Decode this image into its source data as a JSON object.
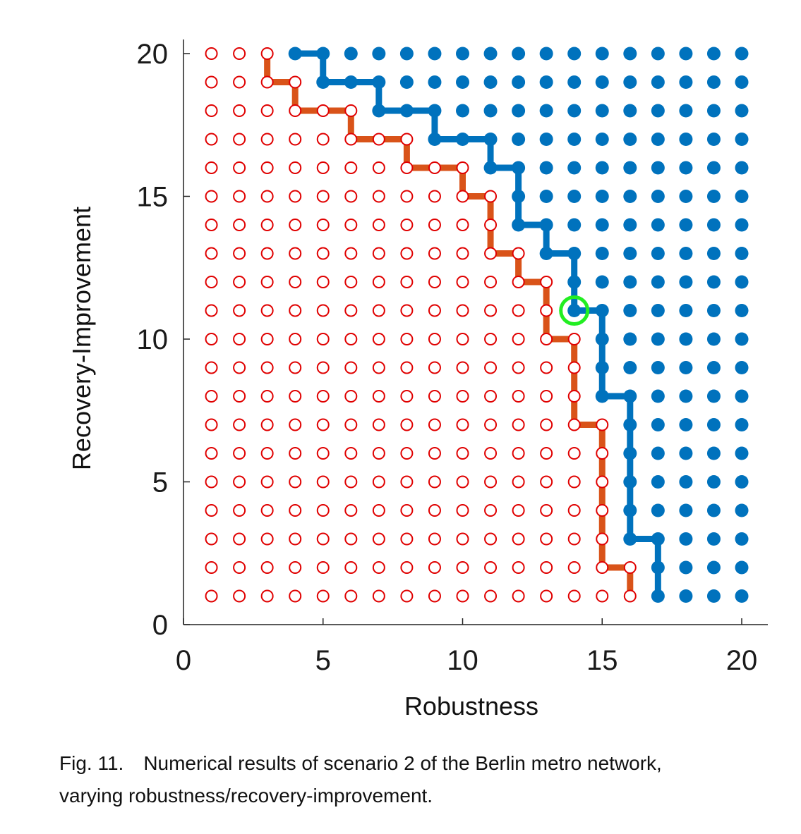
{
  "chart_data": {
    "type": "scatter",
    "xlabel": "Robustness",
    "ylabel": "Recovery-Improvement",
    "xlim": [
      0,
      20
    ],
    "ylim": [
      0,
      20
    ],
    "xticks": [
      0,
      5,
      10,
      15,
      20
    ],
    "yticks": [
      0,
      5,
      10,
      15,
      20
    ],
    "grid": false,
    "grid_points": {
      "x": [
        1,
        20
      ],
      "y": [
        1,
        20
      ],
      "step": 1
    },
    "feasible_min_x_by_y": [
      {
        "y": 1,
        "x": 17
      },
      {
        "y": 2,
        "x": 17
      },
      {
        "y": 3,
        "x": 16
      },
      {
        "y": 4,
        "x": 16
      },
      {
        "y": 5,
        "x": 16
      },
      {
        "y": 6,
        "x": 16
      },
      {
        "y": 7,
        "x": 16
      },
      {
        "y": 8,
        "x": 15
      },
      {
        "y": 9,
        "x": 15
      },
      {
        "y": 10,
        "x": 15
      },
      {
        "y": 11,
        "x": 14
      },
      {
        "y": 12,
        "x": 14
      },
      {
        "y": 13,
        "x": 13
      },
      {
        "y": 14,
        "x": 12
      },
      {
        "y": 15,
        "x": 12
      },
      {
        "y": 16,
        "x": 11
      },
      {
        "y": 17,
        "x": 9
      },
      {
        "y": 18,
        "x": 7
      },
      {
        "y": 19,
        "x": 5
      },
      {
        "y": 20,
        "x": 4
      }
    ],
    "series": [
      {
        "style": "filled",
        "color": "#0072BD",
        "frontier": [
          [
            4,
            20
          ],
          [
            5,
            20
          ],
          [
            5,
            19
          ],
          [
            7,
            19
          ],
          [
            7,
            18
          ],
          [
            9,
            18
          ],
          [
            9,
            17
          ],
          [
            11,
            17
          ],
          [
            11,
            16
          ],
          [
            12,
            16
          ],
          [
            12,
            14
          ],
          [
            13,
            14
          ],
          [
            13,
            13
          ],
          [
            14,
            13
          ],
          [
            14,
            11
          ],
          [
            15,
            11
          ],
          [
            15,
            8
          ],
          [
            16,
            8
          ],
          [
            16,
            3
          ],
          [
            17,
            3
          ],
          [
            17,
            1
          ]
        ]
      },
      {
        "style": "open",
        "color": "#E00000",
        "line_color": "#D95319",
        "frontier": [
          [
            3,
            20
          ],
          [
            3,
            19
          ],
          [
            4,
            19
          ],
          [
            4,
            18
          ],
          [
            6,
            18
          ],
          [
            6,
            17
          ],
          [
            8,
            17
          ],
          [
            8,
            16
          ],
          [
            10,
            16
          ],
          [
            10,
            15
          ],
          [
            11,
            15
          ],
          [
            11,
            13
          ],
          [
            12,
            13
          ],
          [
            12,
            12
          ],
          [
            13,
            12
          ],
          [
            13,
            10
          ],
          [
            14,
            10
          ],
          [
            14,
            7
          ],
          [
            15,
            7
          ],
          [
            15,
            2
          ],
          [
            16,
            2
          ],
          [
            16,
            1
          ]
        ]
      }
    ],
    "highlight": {
      "x": 14,
      "y": 11,
      "color": "#22EE22"
    }
  },
  "caption": {
    "figure_number": "Fig. 11.",
    "text_line1": "Numerical results of scenario 2 of the Berlin metro network,",
    "text_line2": "varying robustness/recovery-improvement."
  }
}
